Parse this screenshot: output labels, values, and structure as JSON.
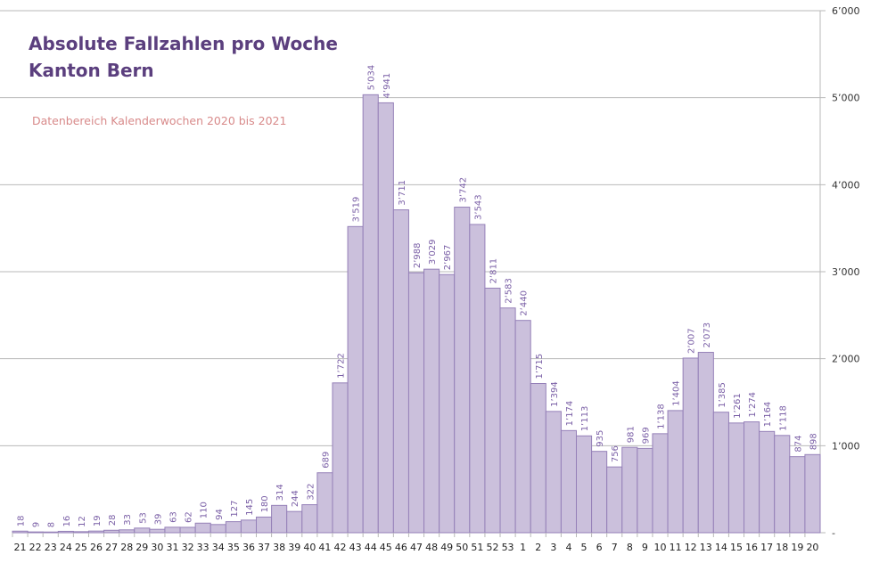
{
  "chart_data": {
    "type": "bar",
    "title": "Absolute Fallzahlen pro Woche",
    "title_line2": "Kanton Bern",
    "subtitle": "Datenbereich Kalenderwochen 2020 bis 2021",
    "xlabel": "",
    "ylabel": "",
    "ylim": [
      0,
      6000
    ],
    "y_ticks": [
      0,
      1000,
      2000,
      3000,
      4000,
      5000,
      6000
    ],
    "y_tick_labels": [
      "-",
      "1’000",
      "2’000",
      "3’000",
      "4’000",
      "5’000",
      "6’000"
    ],
    "y_axis_position": "right",
    "grid": true,
    "categories": [
      "21",
      "22",
      "23",
      "24",
      "25",
      "26",
      "27",
      "28",
      "29",
      "30",
      "31",
      "32",
      "33",
      "34",
      "35",
      "36",
      "37",
      "38",
      "39",
      "40",
      "41",
      "42",
      "43",
      "44",
      "45",
      "46",
      "47",
      "48",
      "49",
      "50",
      "51",
      "52",
      "53",
      "1",
      "2",
      "3",
      "4",
      "5",
      "6",
      "7",
      "8",
      "9",
      "10",
      "11",
      "12",
      "13",
      "14",
      "15",
      "16",
      "17",
      "18",
      "19",
      "20"
    ],
    "values": [
      18,
      9,
      8,
      16,
      12,
      19,
      28,
      33,
      53,
      39,
      63,
      62,
      110,
      94,
      127,
      145,
      180,
      314,
      244,
      322,
      689,
      1722,
      3519,
      5034,
      4941,
      3711,
      2988,
      3029,
      2967,
      3742,
      3543,
      2811,
      2583,
      2440,
      1715,
      1394,
      1174,
      1113,
      935,
      756,
      981,
      969,
      1138,
      1404,
      2007,
      2073,
      1385,
      1261,
      1274,
      1164,
      1118,
      874,
      898
    ],
    "value_labels": [
      "18",
      "9",
      "8",
      "16",
      "12",
      "19",
      "28",
      "33",
      "53",
      "39",
      "63",
      "62",
      "110",
      "94",
      "127",
      "145",
      "180",
      "314",
      "244",
      "322",
      "689",
      "1’722",
      "3’519",
      "5’034",
      "4’941",
      "3’711",
      "2’988",
      "3’029",
      "2’967",
      "3’742",
      "3’543",
      "2’811",
      "2’583",
      "2’440",
      "1’715",
      "1’394",
      "1’174",
      "1’113",
      "935",
      "756",
      "981",
      "969",
      "1’138",
      "1’404",
      "2’007",
      "2’073",
      "1’385",
      "1’261",
      "1’274",
      "1’164",
      "1’118",
      "874",
      "898"
    ],
    "colors": {
      "bar_fill": "#cbc0dc",
      "bar_stroke": "#9580b8",
      "label": "#7a5fa6",
      "grid": "#b8b8b8",
      "title": "#5b3f7e",
      "subtitle": "#d88a8a"
    }
  }
}
